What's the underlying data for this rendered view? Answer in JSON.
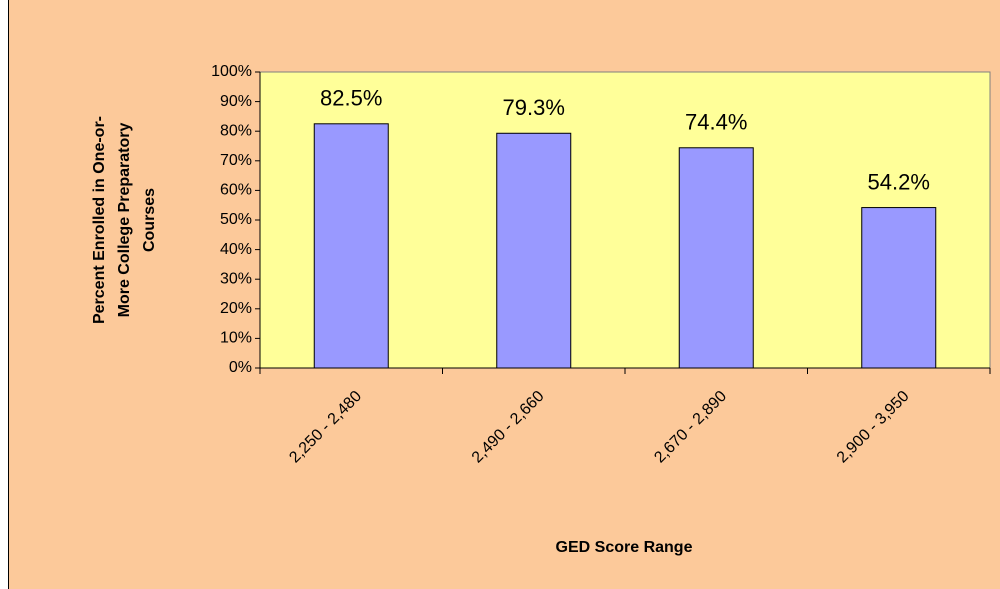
{
  "chart_data": {
    "type": "bar",
    "categories": [
      "2,250 - 2,480",
      "2,490 - 2,660",
      "2,670 - 2,890",
      "2,900 - 3,950"
    ],
    "values": [
      82.5,
      79.3,
      74.4,
      54.2
    ],
    "value_labels": [
      "82.5%",
      "79.3%",
      "74.4%",
      "54.2%"
    ],
    "color": "#9999ff",
    "ylim": [
      0,
      100
    ],
    "yticks": [
      {
        "value": 0,
        "label": "0%"
      },
      {
        "value": 10,
        "label": "10%"
      },
      {
        "value": 20,
        "label": "20%"
      },
      {
        "value": 30,
        "label": "30%"
      },
      {
        "value": 40,
        "label": "40%"
      },
      {
        "value": 50,
        "label": "50%"
      },
      {
        "value": 60,
        "label": "60%"
      },
      {
        "value": 70,
        "label": "70%"
      },
      {
        "value": 80,
        "label": "80%"
      },
      {
        "value": 90,
        "label": "90%"
      },
      {
        "value": 100,
        "label": "100%"
      }
    ],
    "xlabel": "GED Score Range",
    "ylabel": [
      "Percent Enrolled in One-or-",
      "More College Preparatory",
      "Courses"
    ]
  }
}
